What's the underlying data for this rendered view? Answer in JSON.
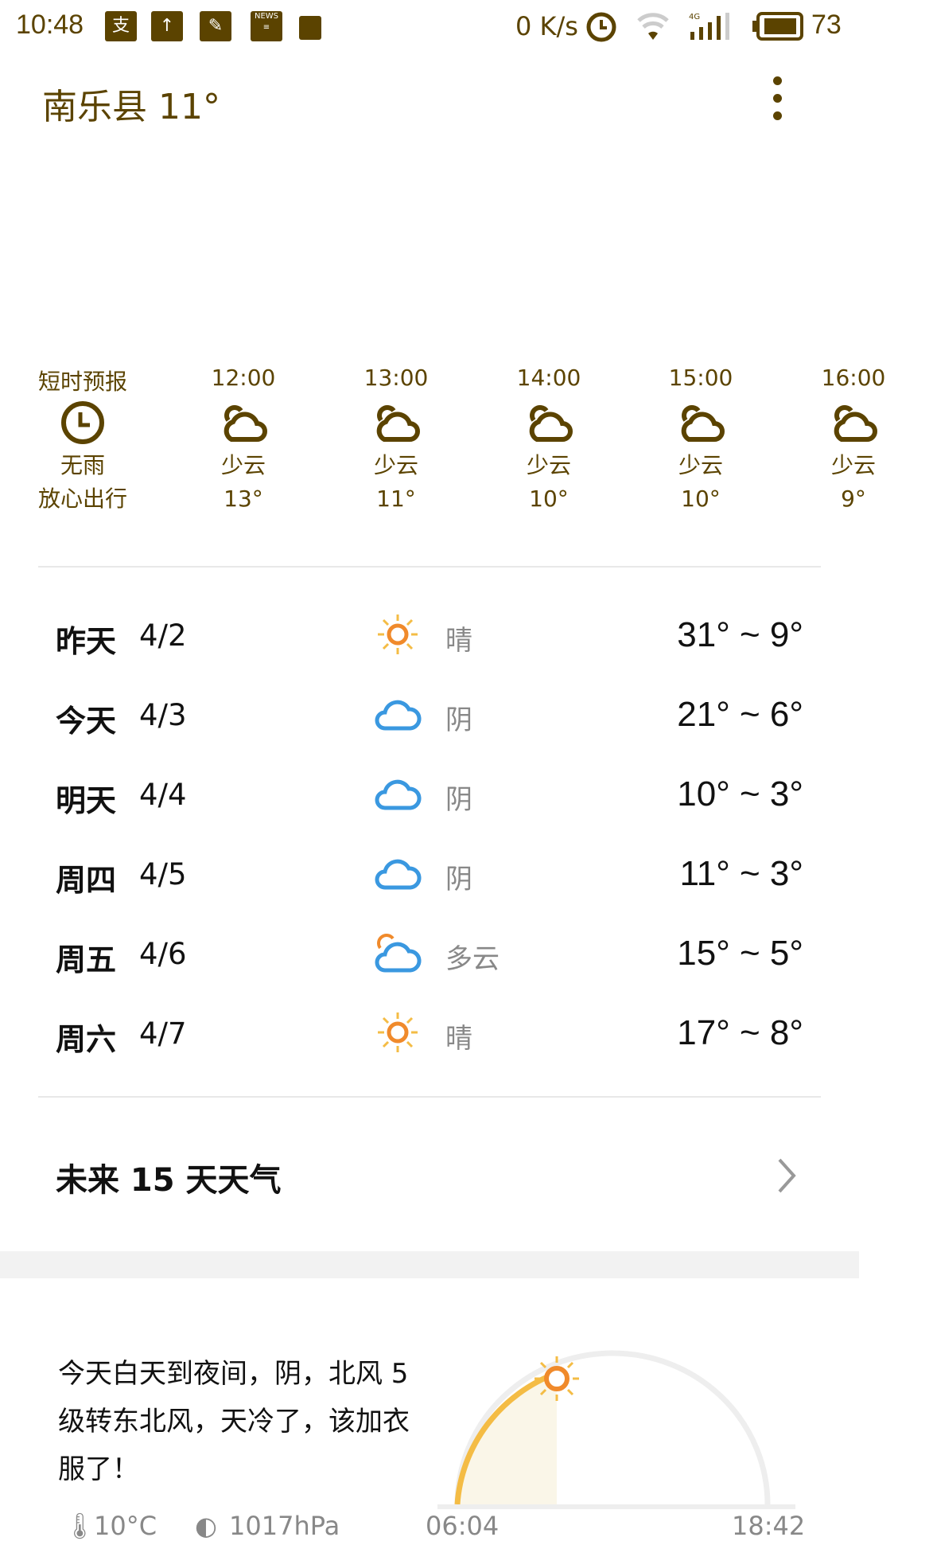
{
  "status_bar": {
    "time": "10:48",
    "net_speed": "0 K/s",
    "network": "4G",
    "battery": "73",
    "battery_level_percent": 73,
    "icons": [
      "alipay-icon",
      "upload-icon",
      "gallery-icon",
      "news-icon",
      "cleaner-icon",
      "alarm-icon",
      "wifi-icon",
      "signal-icon",
      "battery-icon"
    ]
  },
  "header": {
    "title": "南乐县 11°"
  },
  "hourly": [
    {
      "time": "短时预报",
      "icon": "clock-icon",
      "desc": "无雨",
      "temp": "放心出行"
    },
    {
      "time": "12:00",
      "icon": "partly-cloudy-icon",
      "desc": "少云",
      "temp": "13°"
    },
    {
      "time": "13:00",
      "icon": "partly-cloudy-icon",
      "desc": "少云",
      "temp": "11°"
    },
    {
      "time": "14:00",
      "icon": "partly-cloudy-icon",
      "desc": "少云",
      "temp": "10°"
    },
    {
      "time": "15:00",
      "icon": "partly-cloudy-icon",
      "desc": "少云",
      "temp": "10°"
    },
    {
      "time": "16:00",
      "icon": "partly-cloudy-icon",
      "desc": "少云",
      "temp": "9°"
    }
  ],
  "daily": [
    {
      "day": "昨天",
      "date": "4/2",
      "icon": "sunny",
      "desc": "晴",
      "temp": "31° ~ 9°"
    },
    {
      "day": "今天",
      "date": "4/3",
      "icon": "cloudy",
      "desc": "阴",
      "temp": "21° ~ 6°"
    },
    {
      "day": "明天",
      "date": "4/4",
      "icon": "cloudy",
      "desc": "阴",
      "temp": "10° ~ 3°"
    },
    {
      "day": "周四",
      "date": "4/5",
      "icon": "cloudy",
      "desc": "阴",
      "temp": "11° ~ 3°"
    },
    {
      "day": "周五",
      "date": "4/6",
      "icon": "partly-cloudy",
      "desc": "多云",
      "temp": "15° ~ 5°"
    },
    {
      "day": "周六",
      "date": "4/7",
      "icon": "sunny",
      "desc": "晴",
      "temp": "17° ~ 8°"
    }
  ],
  "fifteen_day_label": "未来 15 天天气",
  "summary": "今天白天到夜间，阴，北风 5 级转东北风，天冷了，该加衣服了！",
  "details": {
    "temperature": "10°C",
    "pressure": "1017hPa",
    "sunrise": "06:04",
    "sunset": "18:42"
  },
  "colors": {
    "accent": "#5b4300",
    "sun": "#f08a2b",
    "cloud": "#3a98e0",
    "arc": "#f4bc45"
  }
}
